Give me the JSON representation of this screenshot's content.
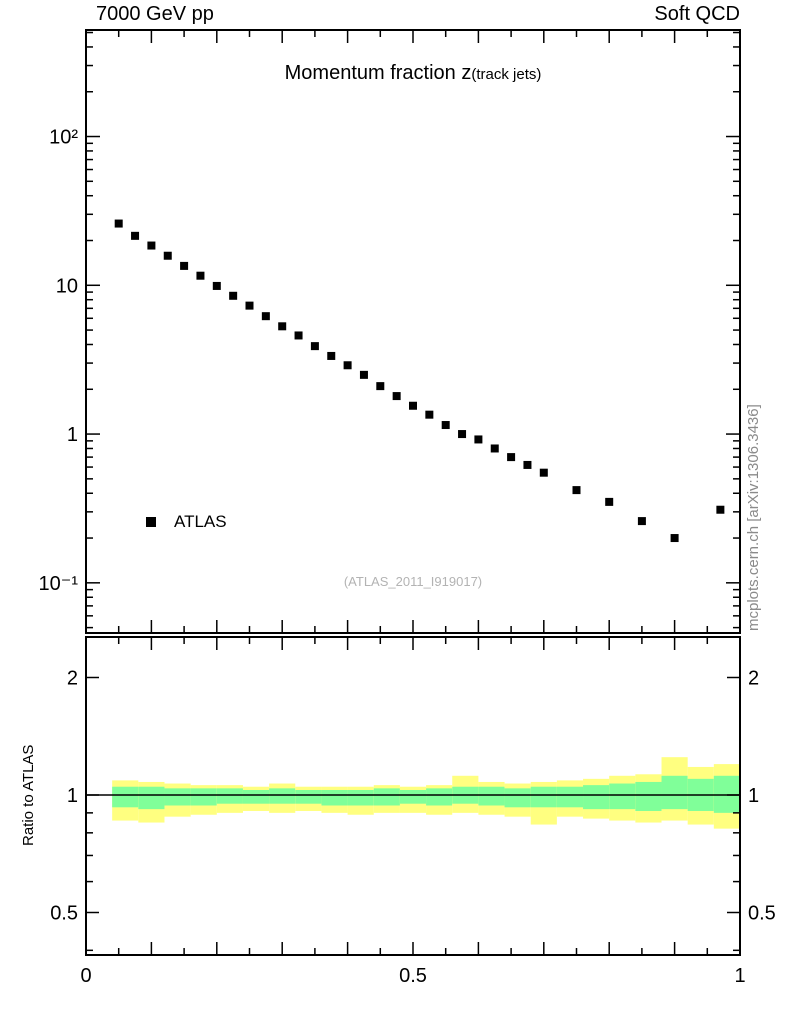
{
  "header": {
    "left": "7000 GeV pp",
    "right": "Soft QCD"
  },
  "title": {
    "main": "Momentum fraction z",
    "sub": "(track jets)"
  },
  "legend": {
    "label": "ATLAS"
  },
  "watermark": "(ATLAS_2011_I919017)",
  "side_caption": "mcplots.cern.ch [arXiv:1306.3436]",
  "chart_data": {
    "type": "scatter",
    "title": "Momentum fraction z (track jets)",
    "xlabel": "",
    "xlim": [
      0,
      1
    ],
    "main_panel": {
      "yscale": "log",
      "ylim": [
        0.05,
        500
      ],
      "y_ticks": [
        {
          "v": 100,
          "label": "10²"
        },
        {
          "v": 10,
          "label": "10"
        },
        {
          "v": 1,
          "label": "1"
        },
        {
          "v": 0.1,
          "label": "10⁻¹"
        }
      ]
    },
    "x_ticks": [
      {
        "v": 0,
        "label": "0"
      },
      {
        "v": 0.5,
        "label": "0.5"
      },
      {
        "v": 1,
        "label": "1"
      }
    ],
    "series": [
      {
        "name": "ATLAS",
        "marker": "filled-square",
        "color": "#000000",
        "x": [
          0.05,
          0.075,
          0.1,
          0.125,
          0.15,
          0.175,
          0.2,
          0.225,
          0.25,
          0.275,
          0.3,
          0.325,
          0.35,
          0.375,
          0.4,
          0.425,
          0.45,
          0.475,
          0.5,
          0.525,
          0.55,
          0.575,
          0.6,
          0.625,
          0.65,
          0.675,
          0.7,
          0.75,
          0.8,
          0.85,
          0.9,
          0.97
        ],
        "y": [
          26,
          21.5,
          18.5,
          15.8,
          13.5,
          11.6,
          9.9,
          8.5,
          7.3,
          6.2,
          5.3,
          4.6,
          3.9,
          3.35,
          2.9,
          2.5,
          2.1,
          1.8,
          1.55,
          1.35,
          1.15,
          1.0,
          0.92,
          0.8,
          0.7,
          0.62,
          0.55,
          0.42,
          0.35,
          0.26,
          0.2,
          0.31
        ]
      }
    ],
    "ratio": {
      "ylabel": "Ratio to ATLAS",
      "yscale": "log",
      "ylim": [
        0.39,
        2.55
      ],
      "line_y": 1,
      "y_ticks": [
        {
          "v": 0.5,
          "label": "0.5"
        },
        {
          "v": 1,
          "label": "1"
        },
        {
          "v": 2,
          "label": "2"
        }
      ],
      "band_colors": {
        "outer": "#ffff80",
        "inner": "#80ff99"
      },
      "bins": [
        [
          0.04,
          0.08,
          0.86,
          1.09,
          0.93,
          1.05
        ],
        [
          0.08,
          0.12,
          0.85,
          1.08,
          0.92,
          1.05
        ],
        [
          0.12,
          0.16,
          0.88,
          1.07,
          0.94,
          1.04
        ],
        [
          0.16,
          0.2,
          0.89,
          1.06,
          0.94,
          1.04
        ],
        [
          0.2,
          0.24,
          0.9,
          1.06,
          0.95,
          1.04
        ],
        [
          0.24,
          0.28,
          0.91,
          1.05,
          0.95,
          1.03
        ],
        [
          0.28,
          0.32,
          0.9,
          1.07,
          0.95,
          1.04
        ],
        [
          0.32,
          0.36,
          0.91,
          1.05,
          0.95,
          1.03
        ],
        [
          0.36,
          0.4,
          0.9,
          1.05,
          0.94,
          1.03
        ],
        [
          0.4,
          0.44,
          0.89,
          1.05,
          0.94,
          1.03
        ],
        [
          0.44,
          0.48,
          0.9,
          1.06,
          0.94,
          1.04
        ],
        [
          0.48,
          0.52,
          0.9,
          1.05,
          0.95,
          1.03
        ],
        [
          0.52,
          0.56,
          0.89,
          1.06,
          0.94,
          1.04
        ],
        [
          0.56,
          0.6,
          0.9,
          1.12,
          0.95,
          1.05
        ],
        [
          0.6,
          0.64,
          0.89,
          1.08,
          0.94,
          1.05
        ],
        [
          0.64,
          0.68,
          0.88,
          1.07,
          0.93,
          1.04
        ],
        [
          0.68,
          0.72,
          0.84,
          1.08,
          0.93,
          1.05
        ],
        [
          0.72,
          0.76,
          0.88,
          1.09,
          0.93,
          1.05
        ],
        [
          0.76,
          0.8,
          0.87,
          1.1,
          0.92,
          1.06
        ],
        [
          0.8,
          0.84,
          0.86,
          1.12,
          0.92,
          1.07
        ],
        [
          0.84,
          0.88,
          0.85,
          1.13,
          0.91,
          1.08
        ],
        [
          0.88,
          0.92,
          0.86,
          1.25,
          0.92,
          1.12
        ],
        [
          0.92,
          0.96,
          0.84,
          1.18,
          0.91,
          1.1
        ],
        [
          0.96,
          1.0,
          0.82,
          1.2,
          0.9,
          1.12
        ]
      ]
    }
  }
}
